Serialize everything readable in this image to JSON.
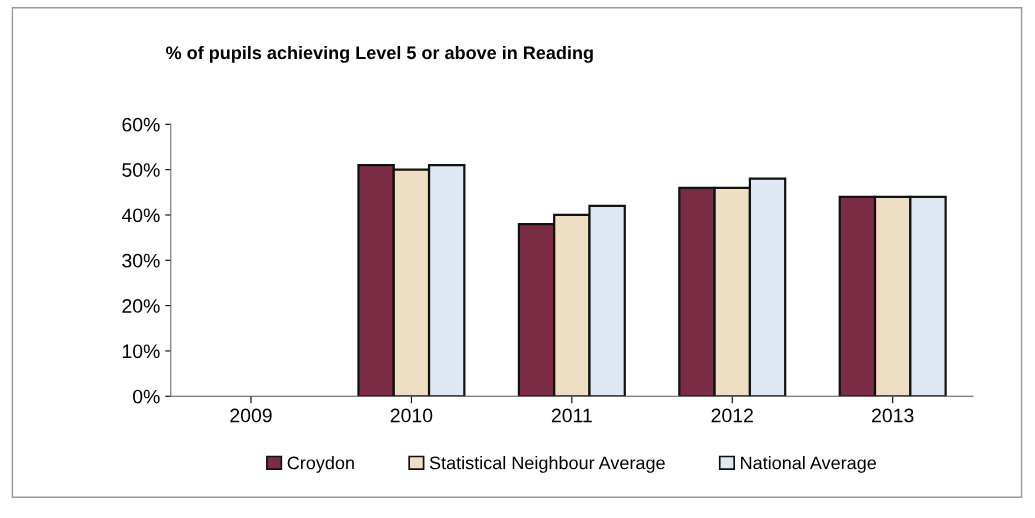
{
  "chart_data": {
    "type": "bar",
    "title": "% of pupils achieving Level 5 or above in Reading",
    "categories": [
      "2009",
      "2010",
      "2011",
      "2012",
      "2013"
    ],
    "series": [
      {
        "name": "Croydon",
        "color": "#7b2c45",
        "values": [
          null,
          51,
          38,
          46,
          44
        ]
      },
      {
        "name": "Statistical Neighbour Average",
        "color": "#eedfc4",
        "values": [
          null,
          50,
          40,
          46,
          44
        ]
      },
      {
        "name": "National Average",
        "color": "#dde8f2",
        "values": [
          null,
          51,
          42,
          48,
          44
        ]
      }
    ],
    "ylim": [
      0,
      60
    ],
    "yticks": [
      {
        "value": 0,
        "label": "0%"
      },
      {
        "value": 10,
        "label": "10%"
      },
      {
        "value": 20,
        "label": "20%"
      },
      {
        "value": 30,
        "label": "30%"
      },
      {
        "value": 40,
        "label": "40%"
      },
      {
        "value": 50,
        "label": "50%"
      },
      {
        "value": 60,
        "label": "60%"
      }
    ],
    "grid": false,
    "legend": "bottom"
  }
}
